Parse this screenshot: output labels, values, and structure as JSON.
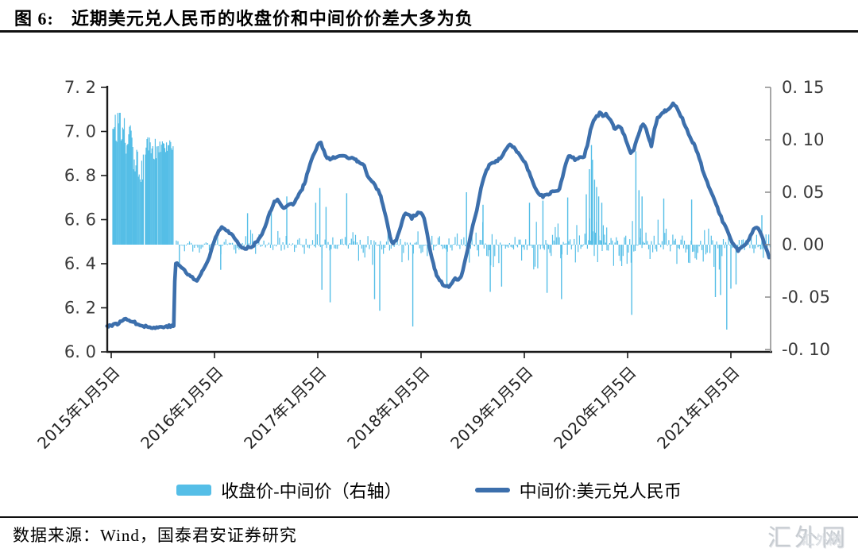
{
  "title": {
    "prefix": "图 6:",
    "text": "近期美元兑人民币的收盘价和中间价价差大多为负"
  },
  "source": "数据来源：Wind，国泰君安证券研究",
  "watermark": {
    "text": "汇外网"
  },
  "legend": [
    {
      "label": "收盘价-中间价（右轴）",
      "type": "bar"
    },
    {
      "label": "中间价:美元兑人民币",
      "type": "line"
    }
  ],
  "colors": {
    "bar": "#55BEE7",
    "line": "#3C6FAC",
    "axis": "#1a1a1a",
    "right_axis": "#8a8a8a",
    "tick_text": "#3a3a3a"
  },
  "chart_data": {
    "type": "bar",
    "subtype": "dual-axis bar + line",
    "grid": false,
    "legend_position": "bottom",
    "left_axis": {
      "title": "中间价 (USD/CNY)",
      "min": 6.0,
      "max": 7.2,
      "step": 0.2,
      "ticks": [
        7.2,
        7.0,
        6.8,
        6.6,
        6.4,
        6.2,
        6.0
      ],
      "labels": [
        "7. 2",
        "7. 0",
        "6. 8",
        "6. 6",
        "6. 4",
        "6. 2",
        "6. 0"
      ]
    },
    "right_axis": {
      "title": "收盘价-中间价",
      "min": -0.1,
      "max": 0.15,
      "step": 0.05,
      "ticks": [
        0.15,
        0.1,
        0.05,
        0.0,
        -0.05,
        -0.1
      ],
      "labels": [
        "0. 15",
        "0. 10",
        "0. 05",
        "0. 00",
        "-0. 05",
        "-0. 10"
      ]
    },
    "x_axis": {
      "unit": "year (date)",
      "range": [
        2014.96,
        2021.4
      ],
      "ticks": [
        2015,
        2016,
        2017,
        2018,
        2019,
        2020,
        2021
      ],
      "tick_labels": [
        "2015年1月5日",
        "2016年1月5日",
        "2017年1月5日",
        "2018年1月5日",
        "2019年1月5日",
        "2020年1月5日",
        "2021年1月5日"
      ]
    },
    "line_series": {
      "name": "中间价:美元兑人民币",
      "axis": "left",
      "points": [
        [
          2014.96,
          6.118
        ],
        [
          2015.02,
          6.122
        ],
        [
          2015.06,
          6.128
        ],
        [
          2015.1,
          6.138
        ],
        [
          2015.14,
          6.152
        ],
        [
          2015.17,
          6.148
        ],
        [
          2015.2,
          6.138
        ],
        [
          2015.24,
          6.13
        ],
        [
          2015.28,
          6.124
        ],
        [
          2015.32,
          6.118
        ],
        [
          2015.36,
          6.112
        ],
        [
          2015.4,
          6.11
        ],
        [
          2015.44,
          6.11
        ],
        [
          2015.48,
          6.113
        ],
        [
          2015.52,
          6.116
        ],
        [
          2015.56,
          6.117
        ],
        [
          2015.6,
          6.116
        ],
        [
          2015.605,
          6.118
        ],
        [
          2015.615,
          6.32
        ],
        [
          2015.625,
          6.401
        ],
        [
          2015.65,
          6.398
        ],
        [
          2015.68,
          6.385
        ],
        [
          2015.71,
          6.368
        ],
        [
          2015.74,
          6.352
        ],
        [
          2015.77,
          6.345
        ],
        [
          2015.8,
          6.33
        ],
        [
          2015.83,
          6.324
        ],
        [
          2015.86,
          6.345
        ],
        [
          2015.89,
          6.372
        ],
        [
          2015.92,
          6.398
        ],
        [
          2015.95,
          6.43
        ],
        [
          2015.98,
          6.478
        ],
        [
          2016.01,
          6.52
        ],
        [
          2016.04,
          6.553
        ],
        [
          2016.07,
          6.568
        ],
        [
          2016.1,
          6.558
        ],
        [
          2016.13,
          6.548
        ],
        [
          2016.16,
          6.537
        ],
        [
          2016.19,
          6.516
        ],
        [
          2016.22,
          6.5
        ],
        [
          2016.25,
          6.478
        ],
        [
          2016.28,
          6.466
        ],
        [
          2016.31,
          6.472
        ],
        [
          2016.34,
          6.478
        ],
        [
          2016.37,
          6.48
        ],
        [
          2016.4,
          6.498
        ],
        [
          2016.43,
          6.512
        ],
        [
          2016.46,
          6.538
        ],
        [
          2016.49,
          6.572
        ],
        [
          2016.52,
          6.61
        ],
        [
          2016.55,
          6.648
        ],
        [
          2016.58,
          6.678
        ],
        [
          2016.61,
          6.688
        ],
        [
          2016.64,
          6.672
        ],
        [
          2016.67,
          6.655
        ],
        [
          2016.7,
          6.662
        ],
        [
          2016.73,
          6.668
        ],
        [
          2016.76,
          6.672
        ],
        [
          2016.79,
          6.69
        ],
        [
          2016.82,
          6.718
        ],
        [
          2016.85,
          6.742
        ],
        [
          2016.88,
          6.775
        ],
        [
          2016.91,
          6.83
        ],
        [
          2016.94,
          6.868
        ],
        [
          2016.97,
          6.905
        ],
        [
          2017.0,
          6.938
        ],
        [
          2017.03,
          6.948
        ],
        [
          2017.06,
          6.912
        ],
        [
          2017.09,
          6.88
        ],
        [
          2017.12,
          6.872
        ],
        [
          2017.15,
          6.882
        ],
        [
          2017.18,
          6.878
        ],
        [
          2017.21,
          6.885
        ],
        [
          2017.24,
          6.892
        ],
        [
          2017.27,
          6.888
        ],
        [
          2017.3,
          6.873
        ],
        [
          2017.33,
          6.88
        ],
        [
          2017.36,
          6.876
        ],
        [
          2017.39,
          6.862
        ],
        [
          2017.42,
          6.858
        ],
        [
          2017.45,
          6.842
        ],
        [
          2017.48,
          6.8
        ],
        [
          2017.51,
          6.778
        ],
        [
          2017.54,
          6.768
        ],
        [
          2017.57,
          6.742
        ],
        [
          2017.6,
          6.718
        ],
        [
          2017.63,
          6.672
        ],
        [
          2017.66,
          6.612
        ],
        [
          2017.69,
          6.545
        ],
        [
          2017.71,
          6.505
        ],
        [
          2017.73,
          6.492
        ],
        [
          2017.76,
          6.505
        ],
        [
          2017.79,
          6.552
        ],
        [
          2017.82,
          6.598
        ],
        [
          2017.85,
          6.632
        ],
        [
          2017.88,
          6.625
        ],
        [
          2017.91,
          6.608
        ],
        [
          2017.94,
          6.622
        ],
        [
          2017.97,
          6.628
        ],
        [
          2018.0,
          6.632
        ],
        [
          2018.03,
          6.605
        ],
        [
          2018.06,
          6.535
        ],
        [
          2018.09,
          6.455
        ],
        [
          2018.12,
          6.395
        ],
        [
          2018.15,
          6.348
        ],
        [
          2018.18,
          6.322
        ],
        [
          2018.21,
          6.308
        ],
        [
          2018.24,
          6.298
        ],
        [
          2018.27,
          6.292
        ],
        [
          2018.3,
          6.312
        ],
        [
          2018.33,
          6.332
        ],
        [
          2018.36,
          6.322
        ],
        [
          2018.39,
          6.348
        ],
        [
          2018.42,
          6.402
        ],
        [
          2018.46,
          6.482
        ],
        [
          2018.5,
          6.572
        ],
        [
          2018.54,
          6.642
        ],
        [
          2018.58,
          6.742
        ],
        [
          2018.62,
          6.812
        ],
        [
          2018.66,
          6.848
        ],
        [
          2018.7,
          6.858
        ],
        [
          2018.74,
          6.868
        ],
        [
          2018.78,
          6.882
        ],
        [
          2018.82,
          6.922
        ],
        [
          2018.86,
          6.942
        ],
        [
          2018.9,
          6.928
        ],
        [
          2018.94,
          6.902
        ],
        [
          2018.98,
          6.872
        ],
        [
          2019.02,
          6.848
        ],
        [
          2019.06,
          6.792
        ],
        [
          2019.1,
          6.748
        ],
        [
          2019.14,
          6.718
        ],
        [
          2019.18,
          6.705
        ],
        [
          2019.22,
          6.715
        ],
        [
          2019.26,
          6.722
        ],
        [
          2019.3,
          6.73
        ],
        [
          2019.34,
          6.738
        ],
        [
          2019.37,
          6.792
        ],
        [
          2019.4,
          6.855
        ],
        [
          2019.43,
          6.892
        ],
        [
          2019.46,
          6.885
        ],
        [
          2019.49,
          6.872
        ],
        [
          2019.52,
          6.878
        ],
        [
          2019.55,
          6.882
        ],
        [
          2019.58,
          6.888
        ],
        [
          2019.61,
          6.935
        ],
        [
          2019.64,
          7.005
        ],
        [
          2019.67,
          7.052
        ],
        [
          2019.7,
          7.068
        ],
        [
          2019.73,
          7.082
        ],
        [
          2019.76,
          7.072
        ],
        [
          2019.79,
          7.078
        ],
        [
          2019.82,
          7.062
        ],
        [
          2019.85,
          7.038
        ],
        [
          2019.88,
          7.008
        ],
        [
          2019.91,
          7.022
        ],
        [
          2019.94,
          7.012
        ],
        [
          2019.97,
          6.978
        ],
        [
          2020.0,
          6.935
        ],
        [
          2020.03,
          6.898
        ],
        [
          2020.06,
          6.912
        ],
        [
          2020.09,
          6.968
        ],
        [
          2020.12,
          7.008
        ],
        [
          2020.15,
          7.032
        ],
        [
          2020.18,
          7.008
        ],
        [
          2020.21,
          6.958
        ],
        [
          2020.23,
          6.932
        ],
        [
          2020.26,
          7.008
        ],
        [
          2020.29,
          7.058
        ],
        [
          2020.32,
          7.078
        ],
        [
          2020.35,
          7.088
        ],
        [
          2020.38,
          7.098
        ],
        [
          2020.41,
          7.112
        ],
        [
          2020.44,
          7.126
        ],
        [
          2020.47,
          7.118
        ],
        [
          2020.5,
          7.088
        ],
        [
          2020.53,
          7.058
        ],
        [
          2020.56,
          7.022
        ],
        [
          2020.59,
          6.992
        ],
        [
          2020.62,
          6.962
        ],
        [
          2020.65,
          6.932
        ],
        [
          2020.68,
          6.898
        ],
        [
          2020.71,
          6.852
        ],
        [
          2020.74,
          6.805
        ],
        [
          2020.77,
          6.772
        ],
        [
          2020.8,
          6.732
        ],
        [
          2020.83,
          6.702
        ],
        [
          2020.86,
          6.668
        ],
        [
          2020.89,
          6.628
        ],
        [
          2020.92,
          6.592
        ],
        [
          2020.95,
          6.568
        ],
        [
          2020.98,
          6.538
        ],
        [
          2021.01,
          6.502
        ],
        [
          2021.04,
          6.478
        ],
        [
          2021.07,
          6.462
        ],
        [
          2021.1,
          6.472
        ],
        [
          2021.13,
          6.482
        ],
        [
          2021.16,
          6.498
        ],
        [
          2021.19,
          6.525
        ],
        [
          2021.22,
          6.552
        ],
        [
          2021.25,
          6.568
        ],
        [
          2021.28,
          6.545
        ],
        [
          2021.31,
          6.508
        ],
        [
          2021.34,
          6.472
        ],
        [
          2021.37,
          6.428
        ]
      ]
    },
    "bar_series": {
      "name": "收盘价-中间价（右轴）",
      "axis": "right",
      "note": "daily spread; pre-Aug-2015 block of large positive values, afterwards noise around zero (mostly negative bias); envelopes + notable spikes",
      "segments": [
        {
          "s": 2015.015,
          "e": 2015.135,
          "sp": 0.008,
          "min": 0.096,
          "max": 0.126,
          "solid": true
        },
        {
          "s": 2015.145,
          "e": 2015.21,
          "sp": 0.008,
          "min": 0.082,
          "max": 0.12,
          "solid": true
        },
        {
          "s": 2015.215,
          "e": 2015.315,
          "sp": 0.008,
          "min": 0.058,
          "max": 0.098,
          "solid": true
        },
        {
          "s": 2015.33,
          "e": 2015.445,
          "sp": 0.008,
          "min": 0.08,
          "max": 0.104,
          "solid": true
        },
        {
          "s": 2015.455,
          "e": 2015.6,
          "sp": 0.008,
          "min": 0.086,
          "max": 0.1,
          "solid": true
        },
        {
          "s": 2015.63,
          "e": 2015.95,
          "sp": 0.016,
          "min": -0.02,
          "max": 0.012
        },
        {
          "s": 2015.95,
          "e": 2016.55,
          "sp": 0.016,
          "min": -0.017,
          "max": 0.017
        },
        {
          "s": 2016.55,
          "e": 2016.95,
          "sp": 0.016,
          "min": -0.016,
          "max": 0.022
        },
        {
          "s": 2016.95,
          "e": 2017.35,
          "sp": 0.015,
          "min": -0.022,
          "max": 0.027
        },
        {
          "s": 2017.35,
          "e": 2017.85,
          "sp": 0.015,
          "min": -0.027,
          "max": 0.022
        },
        {
          "s": 2017.85,
          "e": 2018.35,
          "sp": 0.015,
          "min": -0.022,
          "max": 0.018
        },
        {
          "s": 2018.35,
          "e": 2019.3,
          "sp": 0.013,
          "min": -0.033,
          "max": 0.03
        },
        {
          "s": 2019.3,
          "e": 2019.6,
          "sp": 0.013,
          "min": -0.028,
          "max": 0.033
        },
        {
          "s": 2019.6,
          "e": 2019.8,
          "sp": 0.011,
          "min": -0.028,
          "max": 0.07
        },
        {
          "s": 2019.8,
          "e": 2020.1,
          "sp": 0.013,
          "min": -0.038,
          "max": 0.042
        },
        {
          "s": 2020.1,
          "e": 2020.55,
          "sp": 0.013,
          "min": -0.032,
          "max": 0.04
        },
        {
          "s": 2020.55,
          "e": 2020.95,
          "sp": 0.013,
          "min": -0.045,
          "max": 0.026
        },
        {
          "s": 2020.95,
          "e": 2021.38,
          "sp": 0.013,
          "min": -0.028,
          "max": 0.022
        }
      ],
      "spikes": [
        [
          2015.66,
          -0.022
        ],
        [
          2016.06,
          -0.024
        ],
        [
          2016.32,
          0.03
        ],
        [
          2016.55,
          0.034
        ],
        [
          2016.7,
          0.046
        ],
        [
          2016.98,
          0.04
        ],
        [
          2017.02,
          0.054
        ],
        [
          2017.04,
          -0.043
        ],
        [
          2017.08,
          0.036
        ],
        [
          2017.12,
          -0.055
        ],
        [
          2017.28,
          0.049
        ],
        [
          2017.55,
          -0.052
        ],
        [
          2017.6,
          -0.063
        ],
        [
          2017.92,
          -0.078
        ],
        [
          2018.25,
          -0.04
        ],
        [
          2018.44,
          0.05
        ],
        [
          2018.6,
          0.038
        ],
        [
          2018.67,
          -0.045
        ],
        [
          2018.78,
          -0.04
        ],
        [
          2019.05,
          0.04
        ],
        [
          2019.18,
          0.042
        ],
        [
          2019.22,
          -0.046
        ],
        [
          2019.36,
          -0.052
        ],
        [
          2019.42,
          0.045
        ],
        [
          2019.6,
          0.048
        ],
        [
          2019.63,
          0.072
        ],
        [
          2019.65,
          0.095
        ],
        [
          2019.66,
          0.081
        ],
        [
          2019.68,
          0.062
        ],
        [
          2019.7,
          0.055
        ],
        [
          2019.72,
          0.046
        ],
        [
          2019.75,
          0.04
        ],
        [
          2020.04,
          -0.067
        ],
        [
          2020.08,
          0.089
        ],
        [
          2020.11,
          0.052
        ],
        [
          2020.14,
          0.046
        ],
        [
          2020.35,
          0.044
        ],
        [
          2020.62,
          0.043
        ],
        [
          2020.85,
          -0.05
        ],
        [
          2020.9,
          -0.048
        ],
        [
          2020.96,
          -0.081
        ],
        [
          2021.0,
          -0.042
        ],
        [
          2021.05,
          -0.038
        ],
        [
          2021.3,
          0.028
        ]
      ]
    }
  }
}
